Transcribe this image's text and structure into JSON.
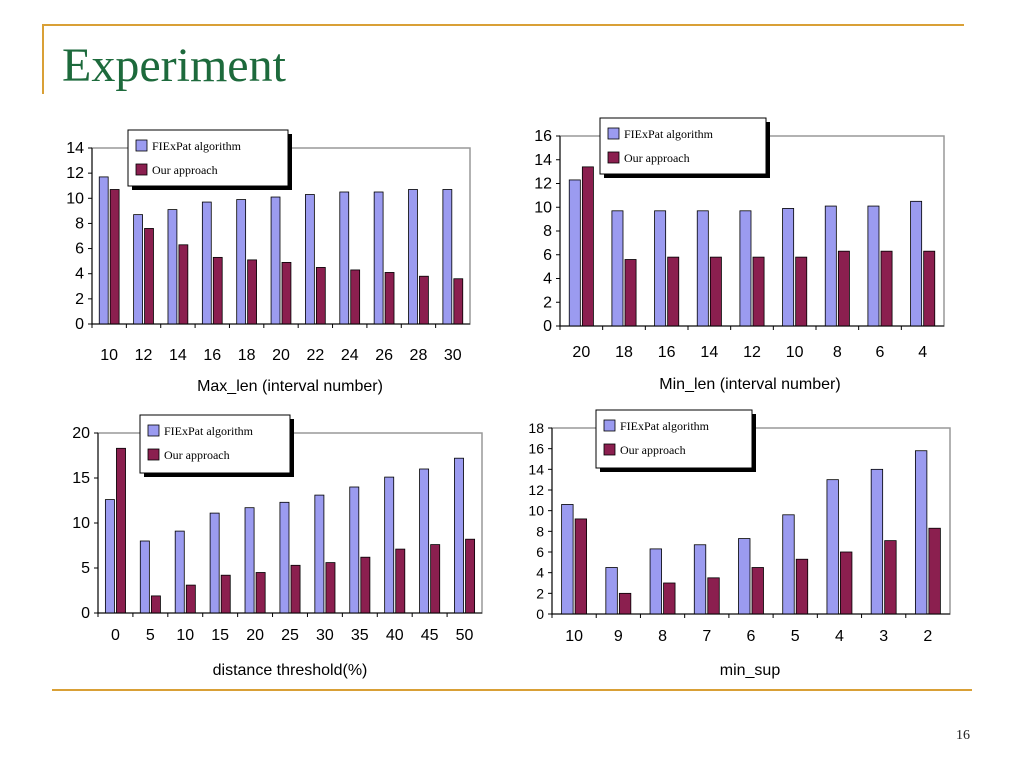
{
  "slide": {
    "title": "Experiment",
    "page_number": "16"
  },
  "colors": {
    "series_a": "#9b9bf0",
    "series_b": "#8b1f4f",
    "accent_line": "#d9a036",
    "title": "#1d6a3c"
  },
  "chart_data": [
    {
      "type": "bar",
      "categories": [
        "10",
        "12",
        "14",
        "16",
        "18",
        "20",
        "22",
        "24",
        "26",
        "28",
        "30"
      ],
      "series": [
        {
          "name": "FIExPat algorithm",
          "values": [
            11.7,
            8.7,
            9.1,
            9.7,
            9.9,
            10.1,
            10.3,
            10.5,
            10.5,
            10.7,
            10.7
          ]
        },
        {
          "name": "Our approach",
          "values": [
            10.7,
            7.6,
            6.3,
            5.3,
            5.1,
            4.9,
            4.5,
            4.3,
            4.1,
            3.8,
            3.6
          ]
        }
      ],
      "xlabel": "Max_len (interval number)",
      "ylim": [
        0,
        14
      ],
      "yticks": [
        "0",
        "2",
        "4",
        "6",
        "8",
        "10",
        "12",
        "14"
      ],
      "grid": false,
      "legend": "top-center"
    },
    {
      "type": "bar",
      "categories": [
        "20",
        "18",
        "16",
        "14",
        "12",
        "10",
        "8",
        "6",
        "4"
      ],
      "series": [
        {
          "name": "FIExPat algorithm",
          "values": [
            12.3,
            9.7,
            9.7,
            9.7,
            9.7,
            9.9,
            10.1,
            10.1,
            10.5
          ]
        },
        {
          "name": "Our approach",
          "values": [
            13.4,
            5.6,
            5.8,
            5.8,
            5.8,
            5.8,
            6.3,
            6.3,
            6.3
          ]
        }
      ],
      "xlabel": "Min_len (interval number)",
      "ylim": [
        0,
        16
      ],
      "yticks": [
        "0",
        "2",
        "4",
        "6",
        "8",
        "10",
        "12",
        "14",
        "16"
      ],
      "grid": false,
      "legend": "top-center"
    },
    {
      "type": "bar",
      "categories": [
        "0",
        "5",
        "10",
        "15",
        "20",
        "25",
        "30",
        "35",
        "40",
        "45",
        "50"
      ],
      "series": [
        {
          "name": "FIExPat algorithm",
          "values": [
            12.6,
            8.0,
            9.1,
            11.1,
            11.7,
            12.3,
            13.1,
            14.0,
            15.1,
            16.0,
            17.2
          ]
        },
        {
          "name": "Our approach",
          "values": [
            18.3,
            1.9,
            3.1,
            4.2,
            4.5,
            5.3,
            5.6,
            6.2,
            7.1,
            7.6,
            8.2
          ]
        }
      ],
      "xlabel": "distance threshold(%)",
      "ylim": [
        0,
        20
      ],
      "yticks": [
        "0",
        "5",
        "10",
        "15",
        "20"
      ],
      "grid": false,
      "legend": "top-center"
    },
    {
      "type": "bar",
      "categories": [
        "10",
        "9",
        "8",
        "7",
        "6",
        "5",
        "4",
        "3",
        "2"
      ],
      "series": [
        {
          "name": "FIExPat algorithm",
          "values": [
            10.6,
            4.5,
            6.3,
            6.7,
            7.3,
            9.6,
            13.0,
            14.0,
            15.8
          ]
        },
        {
          "name": "Our approach",
          "values": [
            9.2,
            2.0,
            3.0,
            3.5,
            4.5,
            5.3,
            6.0,
            7.1,
            8.3
          ]
        }
      ],
      "xlabel": "min_sup",
      "ylim": [
        0,
        18
      ],
      "yticks": [
        "0",
        "2",
        "4",
        "6",
        "8",
        "10",
        "12",
        "14",
        "16",
        "18"
      ],
      "grid": false,
      "legend": "top-center"
    }
  ]
}
